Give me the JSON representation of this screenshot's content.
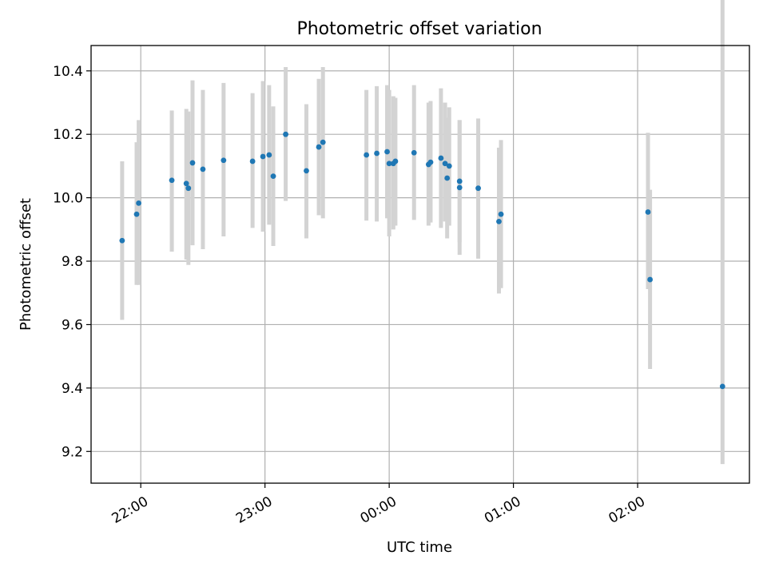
{
  "chart_data": {
    "type": "scatter",
    "title": "Photometric offset variation",
    "xlabel": "UTC time",
    "ylabel": "Photometric offset",
    "x_unit": "UTC time",
    "xlim": [
      "21:36",
      "02:54"
    ],
    "ylim": [
      9.1,
      10.48
    ],
    "xticks": [
      {
        "t": "22:00",
        "label": "22:00"
      },
      {
        "t": "23:00",
        "label": "23:00"
      },
      {
        "t": "00:00",
        "label": "00:00"
      },
      {
        "t": "01:00",
        "label": "01:00"
      },
      {
        "t": "02:00",
        "label": "02:00"
      }
    ],
    "yticks": [
      9.2,
      9.4,
      9.6,
      9.8,
      10.0,
      10.2,
      10.4
    ],
    "grid": true,
    "marker_color": "#1f77b4",
    "errorbar_color": "#d3d3d3",
    "points": [
      {
        "t": "21:51",
        "y": 9.865,
        "lo": 9.615,
        "hi": 10.115
      },
      {
        "t": "21:58",
        "y": 9.948,
        "lo": 9.725,
        "hi": 10.175
      },
      {
        "t": "21:59",
        "y": 9.983,
        "lo": 9.725,
        "hi": 10.245
      },
      {
        "t": "22:15",
        "y": 10.055,
        "lo": 9.83,
        "hi": 10.275
      },
      {
        "t": "22:22",
        "y": 10.045,
        "lo": 9.805,
        "hi": 10.28
      },
      {
        "t": "22:23",
        "y": 10.03,
        "lo": 9.788,
        "hi": 10.272
      },
      {
        "t": "22:25",
        "y": 10.11,
        "lo": 9.85,
        "hi": 10.37
      },
      {
        "t": "22:30",
        "y": 10.09,
        "lo": 9.838,
        "hi": 10.34
      },
      {
        "t": "22:40",
        "y": 10.118,
        "lo": 9.878,
        "hi": 10.362
      },
      {
        "t": "22:54",
        "y": 10.115,
        "lo": 9.905,
        "hi": 10.33
      },
      {
        "t": "22:59",
        "y": 10.13,
        "lo": 9.893,
        "hi": 10.368
      },
      {
        "t": "23:02",
        "y": 10.135,
        "lo": 9.915,
        "hi": 10.355
      },
      {
        "t": "23:04",
        "y": 10.068,
        "lo": 9.848,
        "hi": 10.288
      },
      {
        "t": "23:10",
        "y": 10.2,
        "lo": 9.99,
        "hi": 10.412
      },
      {
        "t": "23:20",
        "y": 10.085,
        "lo": 9.872,
        "hi": 10.295
      },
      {
        "t": "23:26",
        "y": 10.16,
        "lo": 9.945,
        "hi": 10.375
      },
      {
        "t": "23:28",
        "y": 10.175,
        "lo": 9.935,
        "hi": 10.412
      },
      {
        "t": "23:49",
        "y": 10.135,
        "lo": 9.928,
        "hi": 10.34
      },
      {
        "t": "23:54",
        "y": 10.14,
        "lo": 9.925,
        "hi": 10.352
      },
      {
        "t": "23:59",
        "y": 10.145,
        "lo": 9.935,
        "hi": 10.355
      },
      {
        "t": "00:00",
        "y": 10.108,
        "lo": 9.878,
        "hi": 10.34
      },
      {
        "t": "00:02",
        "y": 10.108,
        "lo": 9.9,
        "hi": 10.32
      },
      {
        "t": "00:03",
        "y": 10.115,
        "lo": 9.912,
        "hi": 10.315
      },
      {
        "t": "00:12",
        "y": 10.142,
        "lo": 9.93,
        "hi": 10.355
      },
      {
        "t": "00:19",
        "y": 10.105,
        "lo": 9.912,
        "hi": 10.3
      },
      {
        "t": "00:20",
        "y": 10.112,
        "lo": 9.922,
        "hi": 10.305
      },
      {
        "t": "00:25",
        "y": 10.125,
        "lo": 9.905,
        "hi": 10.345
      },
      {
        "t": "00:27",
        "y": 10.108,
        "lo": 9.925,
        "hi": 10.3
      },
      {
        "t": "00:28",
        "y": 10.062,
        "lo": 9.872,
        "hi": 10.252
      },
      {
        "t": "00:29",
        "y": 10.1,
        "lo": 9.912,
        "hi": 10.285
      },
      {
        "t": "00:34",
        "y": 10.052,
        "lo": 9.86,
        "hi": 10.245
      },
      {
        "t": "00:34",
        "y": 10.032,
        "lo": 9.82,
        "hi": 10.245
      },
      {
        "t": "00:43",
        "y": 10.03,
        "lo": 9.808,
        "hi": 10.25
      },
      {
        "t": "00:53",
        "y": 9.925,
        "lo": 9.698,
        "hi": 10.158
      },
      {
        "t": "00:54",
        "y": 9.948,
        "lo": 9.715,
        "hi": 10.182
      },
      {
        "t": "02:05",
        "y": 9.955,
        "lo": 9.712,
        "hi": 10.205
      },
      {
        "t": "02:06",
        "y": 9.742,
        "lo": 9.46,
        "hi": 10.025
      },
      {
        "t": "02:41",
        "y": 9.405,
        "lo": 9.16,
        "hi": 10.652
      }
    ]
  }
}
